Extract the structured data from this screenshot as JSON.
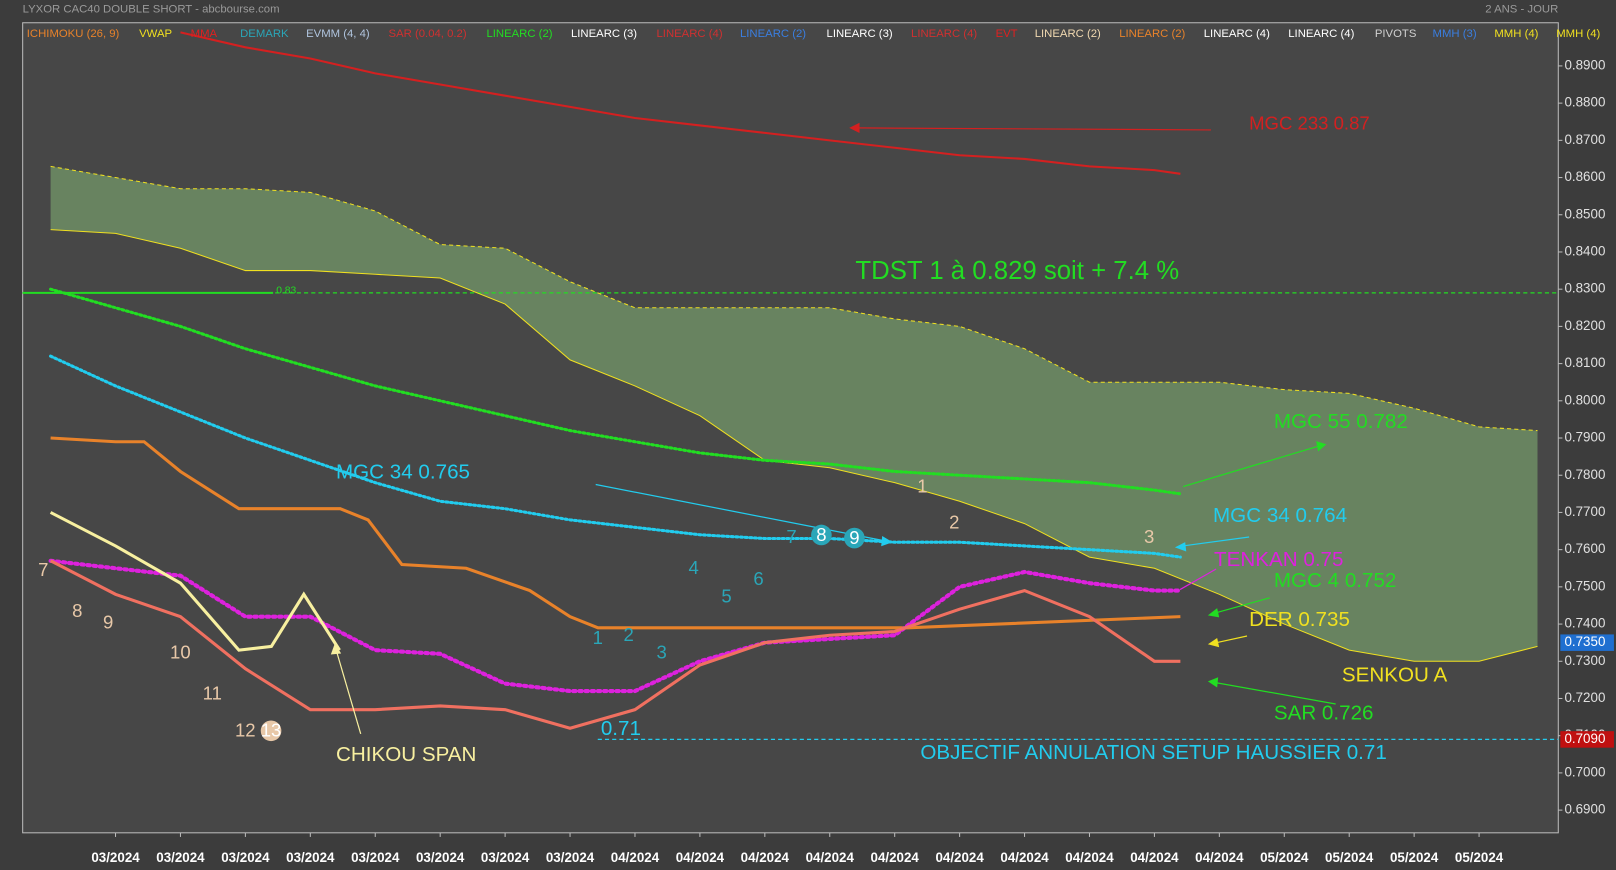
{
  "chart_data": {
    "type": "line",
    "title": "LYXOR CAC40 DOUBLE SHORT - abcbourse.com",
    "period": "2 ANS - JOUR",
    "indicators": [
      {
        "text": "ICHIMOKU (26, 9)",
        "color": "#e8822a"
      },
      {
        "text": "VWAP",
        "color": "#f0e020"
      },
      {
        "text": "MMA",
        "color": "#e02020"
      },
      {
        "text": "DEMARK",
        "color": "#2aa6b8"
      },
      {
        "text": "EVMM (4, 4)",
        "color": "#b0c4de"
      },
      {
        "text": "SAR (0.04, 0.2)",
        "color": "#d03030"
      },
      {
        "text": "LINEARC (2)",
        "color": "#22dd22"
      },
      {
        "text": "LINEARC (3)",
        "color": "#ffffff"
      },
      {
        "text": "LINEARC (4)",
        "color": "#d03030"
      },
      {
        "text": "LINEARC (2)",
        "color": "#3a7ee0"
      },
      {
        "text": "LINEARC (3)",
        "color": "#ffffff"
      },
      {
        "text": "LINEARC (4)",
        "color": "#d03030"
      },
      {
        "text": "EVT",
        "color": "#e02020"
      },
      {
        "text": "LINEARC (2)",
        "color": "#f0d8b0"
      },
      {
        "text": "LINEARC (2)",
        "color": "#e8822a"
      },
      {
        "text": "LINEARC (4)",
        "color": "#ffffff"
      },
      {
        "text": "LINEARC (4)",
        "color": "#ffffff"
      },
      {
        "text": "PIVOTS",
        "color": "#d0d0d0"
      },
      {
        "text": "MMH (3)",
        "color": "#3a7ee0"
      },
      {
        "text": "MMH (4)",
        "color": "#f0e020"
      },
      {
        "text": "MMH (4)",
        "color": "#f0e020"
      }
    ],
    "xlim": [
      -1.43,
      22.22
    ],
    "xticks": [
      {
        "value": 0,
        "label": "03/2024"
      },
      {
        "value": 1,
        "label": "03/2024"
      },
      {
        "value": 2,
        "label": "03/2024"
      },
      {
        "value": 3,
        "label": "03/2024"
      },
      {
        "value": 4,
        "label": "03/2024"
      },
      {
        "value": 5,
        "label": "03/2024"
      },
      {
        "value": 6,
        "label": "03/2024"
      },
      {
        "value": 7,
        "label": "03/2024"
      },
      {
        "value": 8,
        "label": "04/2024"
      },
      {
        "value": 9,
        "label": "04/2024"
      },
      {
        "value": 10,
        "label": "04/2024"
      },
      {
        "value": 11,
        "label": "04/2024"
      },
      {
        "value": 12,
        "label": "04/2024"
      },
      {
        "value": 13,
        "label": "04/2024"
      },
      {
        "value": 14,
        "label": "04/2024"
      },
      {
        "value": 15,
        "label": "04/2024"
      },
      {
        "value": 16,
        "label": "04/2024"
      },
      {
        "value": 17,
        "label": "04/2024"
      },
      {
        "value": 18,
        "label": "05/2024"
      },
      {
        "value": 19,
        "label": "05/2024"
      },
      {
        "value": 20,
        "label": "05/2024"
      },
      {
        "value": 21,
        "label": "05/2024"
      }
    ],
    "ylim": [
      0.6839,
      0.9016
    ],
    "yticks": [
      {
        "value": 0.69,
        "label": "0.6900"
      },
      {
        "value": 0.7,
        "label": "0.7000"
      },
      {
        "value": 0.71,
        "label": "0.7100"
      },
      {
        "value": 0.72,
        "label": "0.7200"
      },
      {
        "value": 0.73,
        "label": "0.7300"
      },
      {
        "value": 0.74,
        "label": "0.7400"
      },
      {
        "value": 0.75,
        "label": "0.7500"
      },
      {
        "value": 0.76,
        "label": "0.7600"
      },
      {
        "value": 0.77,
        "label": "0.7700"
      },
      {
        "value": 0.78,
        "label": "0.7800"
      },
      {
        "value": 0.79,
        "label": "0.7900"
      },
      {
        "value": 0.8,
        "label": "0.8000"
      },
      {
        "value": 0.81,
        "label": "0.8100"
      },
      {
        "value": 0.82,
        "label": "0.8200"
      },
      {
        "value": 0.83,
        "label": "0.8300"
      },
      {
        "value": 0.84,
        "label": "0.8400"
      },
      {
        "value": 0.85,
        "label": "0.8500"
      },
      {
        "value": 0.86,
        "label": "0.8600"
      },
      {
        "value": 0.87,
        "label": "0.8700"
      },
      {
        "value": 0.88,
        "label": "0.8800"
      },
      {
        "value": 0.89,
        "label": "0.8900"
      }
    ],
    "price_labels": [
      {
        "value": 0.735,
        "label": "0.7350",
        "color": "#1f6fd0"
      },
      {
        "value": 0.709,
        "label": "0.7090",
        "color": "#c01010"
      }
    ],
    "cloud_color": "#6b8a63",
    "series": [
      {
        "color": "#f0e020",
        "style": "dashed",
        "width": 1,
        "x": [
          -1,
          0,
          1,
          2,
          3,
          4,
          5,
          6,
          7,
          8,
          9,
          10,
          11,
          12,
          13,
          14,
          15,
          16,
          17,
          18,
          19,
          20,
          21,
          21.9
        ],
        "values": [
          0.863,
          0.86,
          0.857,
          0.857,
          0.856,
          0.851,
          0.842,
          0.841,
          0.832,
          0.825,
          0.825,
          0.825,
          0.825,
          0.822,
          0.82,
          0.814,
          0.805,
          0.805,
          0.805,
          0.803,
          0.802,
          0.798,
          0.793,
          0.792
        ]
      },
      {
        "color": "#f0e020",
        "style": "solid",
        "width": 1,
        "x": [
          -1,
          0,
          1,
          2,
          3,
          4,
          5,
          6,
          7,
          8,
          9,
          10,
          11,
          12,
          13,
          14,
          15,
          16,
          17,
          18,
          19,
          20,
          21,
          21.9
        ],
        "values": [
          0.846,
          0.845,
          0.841,
          0.835,
          0.835,
          0.834,
          0.833,
          0.826,
          0.811,
          0.804,
          0.796,
          0.784,
          0.782,
          0.778,
          0.773,
          0.767,
          0.758,
          0.755,
          0.748,
          0.74,
          0.733,
          0.73,
          0.73,
          0.734
        ]
      },
      {
        "color": "#d42020",
        "style": "solid",
        "width": 2,
        "x": [
          1,
          2,
          3,
          4,
          5,
          6,
          7,
          8,
          9,
          10,
          11,
          12,
          13,
          14,
          15,
          16,
          16.4
        ],
        "values": [
          0.899,
          0.895,
          0.892,
          0.888,
          0.885,
          0.882,
          0.879,
          0.876,
          0.874,
          0.872,
          0.87,
          0.868,
          0.866,
          0.865,
          0.863,
          0.862,
          0.861
        ]
      },
      {
        "color": "#22dd22",
        "style": "dotted",
        "width": 3,
        "x": [
          -1,
          0,
          1,
          2,
          3,
          4,
          5,
          6,
          7,
          8,
          9,
          10,
          11,
          12,
          13,
          14,
          15,
          16,
          16.4
        ],
        "values": [
          0.83,
          0.825,
          0.82,
          0.814,
          0.809,
          0.804,
          0.8,
          0.796,
          0.792,
          0.789,
          0.786,
          0.784,
          0.783,
          0.781,
          0.78,
          0.779,
          0.778,
          0.776,
          0.775
        ]
      },
      {
        "color": "#22ccee",
        "style": "dotted",
        "width": 3,
        "x": [
          -1,
          0,
          1,
          2,
          3,
          4,
          5,
          6,
          7,
          8,
          9,
          10,
          11,
          12,
          13,
          14,
          15,
          16,
          16.4
        ],
        "values": [
          0.812,
          0.804,
          0.797,
          0.79,
          0.784,
          0.778,
          0.773,
          0.771,
          0.768,
          0.766,
          0.764,
          0.763,
          0.763,
          0.762,
          0.762,
          0.761,
          0.76,
          0.759,
          0.758
        ]
      },
      {
        "color": "#e8822a",
        "style": "solid",
        "width": 3,
        "x": [
          -1,
          0,
          0.44,
          1,
          1.9,
          3.46,
          3.89,
          4.41,
          5.4,
          6.38,
          7,
          7.43,
          12.2,
          16.4
        ],
        "values": [
          0.79,
          0.789,
          0.789,
          0.781,
          0.771,
          0.771,
          0.768,
          0.756,
          0.755,
          0.749,
          0.742,
          0.739,
          0.739,
          0.742
        ]
      },
      {
        "color": "#dd22dd",
        "style": "dotted",
        "width": 4,
        "x": [
          -1,
          0,
          1,
          2,
          3,
          4,
          5,
          6,
          7,
          8,
          9,
          10,
          11,
          12,
          13,
          14,
          15,
          16,
          16.4
        ],
        "values": [
          0.757,
          0.755,
          0.753,
          0.742,
          0.742,
          0.733,
          0.732,
          0.724,
          0.722,
          0.722,
          0.73,
          0.735,
          0.736,
          0.737,
          0.75,
          0.754,
          0.751,
          0.749,
          0.749
        ]
      },
      {
        "color": "#f07060",
        "style": "solid",
        "width": 3,
        "x": [
          -1,
          0,
          1,
          2,
          3,
          4,
          5,
          6,
          7,
          8,
          9,
          10,
          11,
          12,
          13,
          14,
          15,
          16,
          16.4
        ],
        "values": [
          0.757,
          0.748,
          0.742,
          0.728,
          0.717,
          0.717,
          0.718,
          0.717,
          0.712,
          0.717,
          0.729,
          0.735,
          0.737,
          0.738,
          0.744,
          0.749,
          0.742,
          0.73,
          0.73
        ]
      },
      {
        "color": "#f8f0a0",
        "style": "solid",
        "width": 3,
        "x": [
          -1,
          0,
          1,
          1.9,
          2.4,
          2.9,
          3.45
        ],
        "values": [
          0.77,
          0.761,
          0.751,
          0.733,
          0.734,
          0.748,
          0.733
        ]
      }
    ],
    "hlines": [
      {
        "value": 0.829,
        "color": "#22dd22"
      },
      {
        "value": 0.709,
        "color": "#22ccee"
      }
    ],
    "annotations": [
      {
        "text": "MGC 233 0.87",
        "color": "#d42020"
      },
      {
        "text": "TDST 1 à 0.829 soit + 7.4 %",
        "color": "#22dd22"
      },
      {
        "text": "0.83",
        "color": "#22dd22"
      },
      {
        "text": "MGC 55 0.782",
        "color": "#22dd22"
      },
      {
        "text": "MGC 34 0.765",
        "color": "#22ccee"
      },
      {
        "text": "MGC 34 0.764",
        "color": "#22ccee"
      },
      {
        "text": "TENKAN 0.75",
        "color": "#dd22dd"
      },
      {
        "text": "MGC 4 0.752",
        "color": "#22dd22"
      },
      {
        "text": "DER 0.735",
        "color": "#f0e020"
      },
      {
        "text": "SENKOU A",
        "color": "#f0e020"
      },
      {
        "text": "SAR 0.726",
        "color": "#22dd22"
      },
      {
        "text": "CHIKOU SPAN",
        "color": "#f8f0a0"
      },
      {
        "text": "OBJECTIF ANNULATION SETUP HAUSSIER 0.71",
        "color": "#22ccee"
      },
      {
        "text": "0.71",
        "color": "#22ccee"
      }
    ],
    "counts": [
      {
        "text": "7",
        "color": "#e8c8a8"
      },
      {
        "text": "8",
        "color": "#e8c8a8"
      },
      {
        "text": "9",
        "color": "#e8c8a8"
      },
      {
        "text": "10",
        "color": "#e8c8a8"
      },
      {
        "text": "11",
        "color": "#e8c8a8"
      },
      {
        "text": "12",
        "color": "#e8c8a8"
      },
      {
        "text": "13",
        "color": "#e8c8a8"
      },
      {
        "text": "1",
        "color": "#2aa6b8"
      },
      {
        "text": "2",
        "color": "#2aa6b8"
      },
      {
        "text": "3",
        "color": "#2aa6b8"
      },
      {
        "text": "4",
        "color": "#2aa6b8"
      },
      {
        "text": "5",
        "color": "#2aa6b8"
      },
      {
        "text": "6",
        "color": "#2aa6b8"
      },
      {
        "text": "7",
        "color": "#2aa6b8"
      },
      {
        "text": "8",
        "color": "#2aa6b8"
      },
      {
        "text": "9",
        "color": "#2aa6b8"
      },
      {
        "text": "1",
        "color": "#e8c8a8"
      },
      {
        "text": "2",
        "color": "#e8c8a8"
      },
      {
        "text": "3",
        "color": "#e8c8a8"
      }
    ]
  }
}
